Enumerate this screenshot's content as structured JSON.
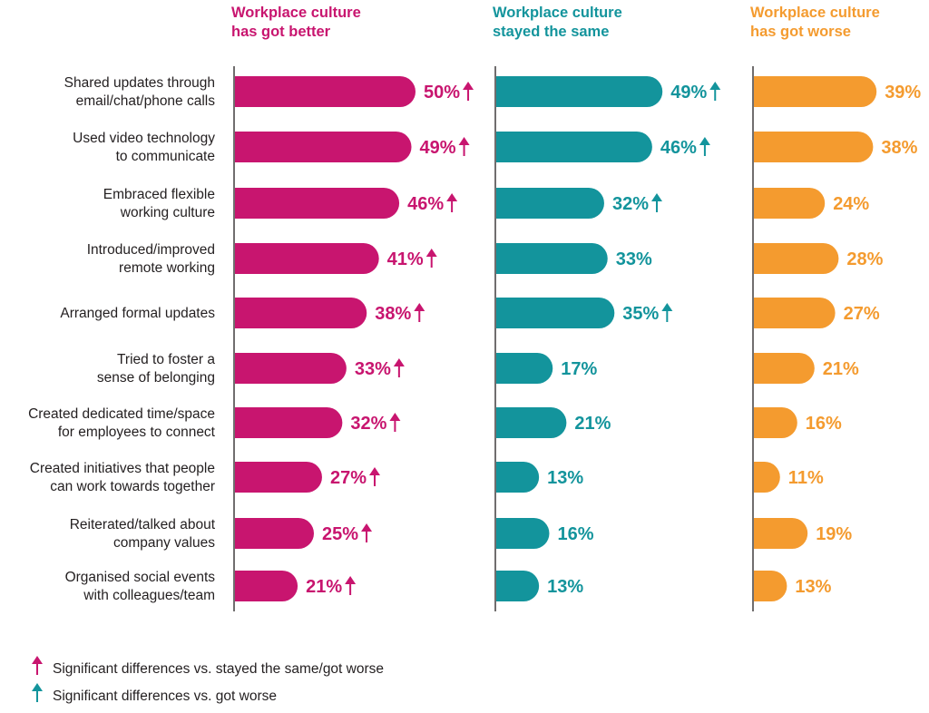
{
  "chart_data": {
    "type": "bar",
    "orientation": "horizontal",
    "categories": [
      [
        "Shared updates through",
        "email/chat/phone calls"
      ],
      [
        "Used video technology",
        "to communicate"
      ],
      [
        "Embraced flexible",
        "working culture"
      ],
      [
        "Introduced/improved",
        "remote working"
      ],
      [
        "Arranged formal updates"
      ],
      [
        "Tried to foster a",
        "sense of belonging"
      ],
      [
        "Created dedicated time/space",
        "for employees to connect"
      ],
      [
        "Created initiatives that people",
        "can work towards together"
      ],
      [
        "Reiterated/talked about",
        "company values"
      ],
      [
        "Organised social events",
        "with colleagues/team"
      ]
    ],
    "unit": "%",
    "series": [
      {
        "name": [
          "Workplace culture",
          "has got better"
        ],
        "color": "#C8156F",
        "values": [
          50,
          49,
          46,
          41,
          38,
          33,
          32,
          27,
          25,
          21
        ],
        "significant": [
          true,
          true,
          true,
          true,
          true,
          true,
          true,
          true,
          true,
          true
        ]
      },
      {
        "name": [
          "Workplace culture",
          "stayed the same"
        ],
        "color": "#13949C",
        "values": [
          49,
          46,
          32,
          33,
          35,
          17,
          21,
          13,
          16,
          13
        ],
        "significant": [
          true,
          true,
          true,
          false,
          true,
          false,
          false,
          false,
          false,
          false
        ]
      },
      {
        "name": [
          "Workplace culture",
          "has got worse"
        ],
        "color": "#F49B2F",
        "values": [
          39,
          38,
          24,
          28,
          27,
          21,
          16,
          11,
          19,
          13
        ],
        "significant": [
          false,
          false,
          false,
          false,
          false,
          false,
          false,
          false,
          false,
          false
        ]
      }
    ],
    "legend": [
      {
        "icon": "arrow-up-icon",
        "color": "#C8156F",
        "label": "Significant differences vs. stayed the same/got worse"
      },
      {
        "icon": "arrow-up-icon",
        "color": "#13949C",
        "label": "Significant differences vs. got worse"
      }
    ],
    "legend_placement": "bottom-left",
    "grid": false
  }
}
